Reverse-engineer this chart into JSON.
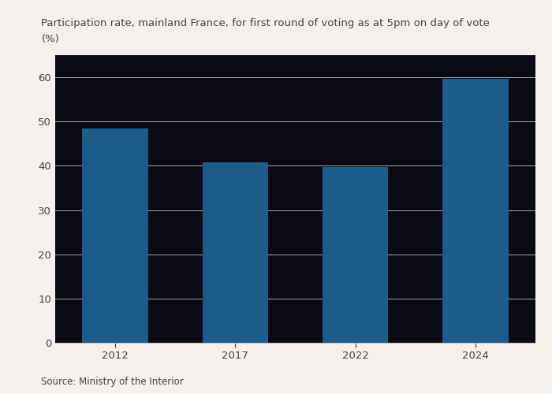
{
  "title_line1": "Participation rate, mainland France, for first round of voting as at 5pm on day of vote",
  "title_line2": "(%)",
  "categories": [
    "2012",
    "2017",
    "2022",
    "2024"
  ],
  "values": [
    48.5,
    40.75,
    39.7,
    59.7
  ],
  "bar_color": "#1B5C8A",
  "bar_width": 0.55,
  "ylim": [
    0,
    65
  ],
  "yticks": [
    0,
    10,
    20,
    30,
    40,
    50,
    60
  ],
  "background_color": "#F5F0EB",
  "plot_bg_color": "#0a0a14",
  "text_color": "#444444",
  "grid_color": "#c8c0b8",
  "source_text": "Source: Ministry of the Interior",
  "title_fontsize": 9.5,
  "tick_fontsize": 9.5,
  "source_fontsize": 8.5
}
